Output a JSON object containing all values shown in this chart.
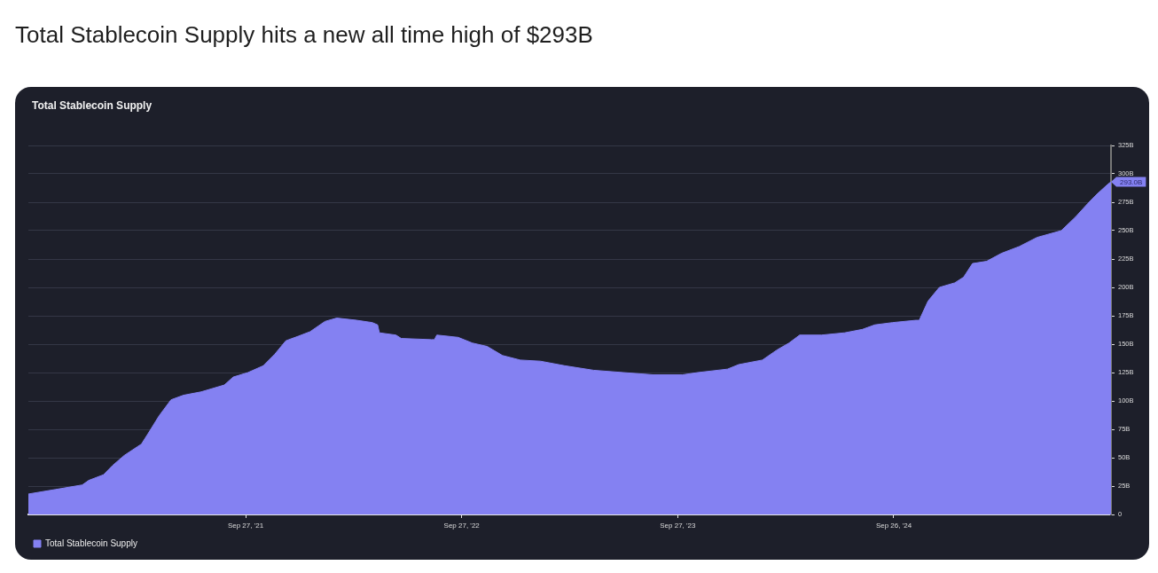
{
  "chart_data": {
    "type": "area",
    "title": "Total Stablecoin Supply hits a new all time high of $293B",
    "subtitle": "Total Stablecoin Supply",
    "x": [
      "2020-09-25",
      "2020-11-10",
      "2020-12-25",
      "2021-01-05",
      "2021-01-30",
      "2021-02-14",
      "2021-03-06",
      "2021-04-04",
      "2021-04-15",
      "2021-05-04",
      "2021-05-24",
      "2021-06-14",
      "2021-07-14",
      "2021-08-22",
      "2021-09-06",
      "2021-10-01",
      "2021-10-27",
      "2021-11-15",
      "2021-12-04",
      "2021-12-25",
      "2022-01-14",
      "2022-02-08",
      "2022-02-28",
      "2022-04-03",
      "2022-04-29",
      "2022-05-08",
      "2022-05-11",
      "2022-06-08",
      "2022-06-17",
      "2022-08-07",
      "2022-08-12",
      "2022-08-16",
      "2022-09-21",
      "2022-10-15",
      "2022-11-09",
      "2022-12-05",
      "2023-01-04",
      "2023-02-07",
      "2023-03-20",
      "2023-05-08",
      "2023-06-27",
      "2023-08-17",
      "2023-10-05",
      "2023-10-31",
      "2023-12-20",
      "2024-01-08",
      "2024-02-17",
      "2024-03-13",
      "2024-04-02",
      "2024-04-20",
      "2024-05-27",
      "2024-07-05",
      "2024-08-04",
      "2024-08-25",
      "2024-09-24",
      "2024-11-02",
      "2024-11-08",
      "2024-11-23",
      "2024-12-12",
      "2025-01-07",
      "2025-01-22",
      "2025-02-06",
      "2025-03-02",
      "2025-03-27",
      "2025-04-26",
      "2025-05-26",
      "2025-07-06",
      "2025-07-30",
      "2025-08-20",
      "2025-09-04",
      "2025-09-23",
      "2025-09-28"
    ],
    "series": [
      {
        "name": "Total Stablecoin Supply",
        "color": "#8481f2",
        "values": [
          18,
          22,
          26,
          30,
          35,
          43,
          52,
          62,
          71,
          87,
          101,
          105,
          108,
          114,
          121,
          125,
          131,
          141,
          153,
          157,
          161,
          170,
          173,
          171,
          169,
          167,
          160,
          158,
          155,
          154,
          154,
          158,
          156,
          151,
          148,
          140,
          136,
          135,
          131,
          127,
          125,
          123,
          123,
          125,
          128,
          132,
          136,
          145,
          151,
          158,
          158,
          160,
          163,
          167,
          169,
          171,
          171,
          188,
          200,
          204,
          209,
          221,
          223,
          230,
          236,
          244,
          250,
          262,
          274,
          282,
          291,
          293
        ]
      }
    ],
    "xlim": [
      "2020-09-25",
      "2025-09-28"
    ],
    "xticks": [
      {
        "value": "2021-09-27",
        "label": "Sep 27, '21"
      },
      {
        "value": "2022-09-27",
        "label": "Sep 27, '22"
      },
      {
        "value": "2023-09-27",
        "label": "Sep 27, '23"
      },
      {
        "value": "2024-09-26",
        "label": "Sep 26, '24"
      }
    ],
    "ylim": [
      0,
      325
    ],
    "yticks": [
      0,
      {
        "value": 25,
        "label": "25B"
      },
      {
        "value": 50,
        "label": "50B"
      },
      {
        "value": 75,
        "label": "75B"
      },
      {
        "value": 100,
        "label": "100B"
      },
      {
        "value": 125,
        "label": "125B"
      },
      {
        "value": 150,
        "label": "150B"
      },
      {
        "value": 175,
        "label": "175B"
      },
      {
        "value": 200,
        "label": "200B"
      },
      {
        "value": 225,
        "label": "225B"
      },
      {
        "value": 250,
        "label": "250B"
      },
      {
        "value": 275,
        "label": "275B"
      },
      {
        "value": 300,
        "label": "300B"
      },
      {
        "value": 325,
        "label": "325B"
      }
    ],
    "grid": "y",
    "legend": "bottom left",
    "annotations": [
      {
        "text": "293.0B",
        "x": "2025-09-28",
        "y": 293
      }
    ]
  }
}
